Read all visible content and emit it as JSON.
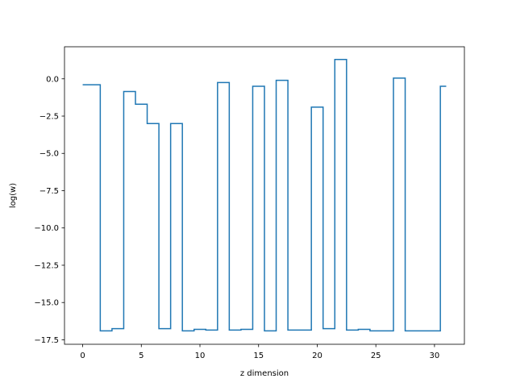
{
  "chart_data": {
    "type": "line",
    "step": "mid",
    "title": "",
    "xlabel": "z dimension",
    "ylabel": "log(w)",
    "xlim": [
      -1.55,
      32.55
    ],
    "ylim": [
      -17.8,
      2.15
    ],
    "xticks": [
      0,
      5,
      10,
      15,
      20,
      25,
      30
    ],
    "xtick_labels": [
      "0",
      "5",
      "10",
      "15",
      "20",
      "25",
      "30"
    ],
    "yticks": [
      0.0,
      -2.5,
      -5.0,
      -7.5,
      -10.0,
      -12.5,
      -15.0,
      -17.5
    ],
    "ytick_labels": [
      "0.0",
      "−2.5",
      "−5.0",
      "−7.5",
      "−10.0",
      "−12.5",
      "−15.0",
      "−17.5"
    ],
    "grid": false,
    "series": [
      {
        "color": "#1f77b4",
        "x": [
          0,
          1,
          2,
          3,
          4,
          5,
          6,
          7,
          8,
          9,
          10,
          11,
          12,
          13,
          14,
          15,
          16,
          17,
          18,
          19,
          20,
          21,
          22,
          23,
          24,
          25,
          26,
          27,
          28,
          29,
          30,
          31
        ],
        "values": [
          -0.4,
          -0.4,
          -16.9,
          -16.75,
          -0.85,
          -1.7,
          -3.0,
          -16.75,
          -3.0,
          -16.9,
          -16.8,
          -16.85,
          -0.25,
          -16.85,
          -16.8,
          -0.5,
          -16.9,
          -0.1,
          -16.85,
          -16.85,
          -1.9,
          -16.75,
          1.3,
          -16.85,
          -16.8,
          -16.9,
          -16.9,
          0.05,
          -16.9,
          -16.9,
          -16.9,
          -0.5
        ]
      }
    ]
  }
}
